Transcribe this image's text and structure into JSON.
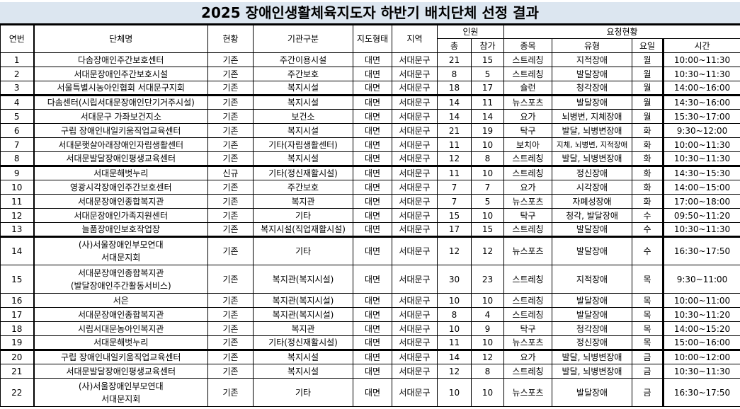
{
  "title": "2025 장애인생활체육지도자 하반기 배치단체 선정 결과",
  "headers": {
    "no": "연번",
    "org": "단체명",
    "status": "현황",
    "category": "기관구분",
    "mode": "지도형태",
    "region": "지역",
    "people": "인원",
    "total": "총",
    "participants": "참가",
    "request": "요청현황",
    "sport": "종목",
    "type": "유형",
    "day": "요일",
    "time": "시간"
  },
  "rows": [
    {
      "no": "1",
      "org": "다솜장애인주간보호센터",
      "status": "기존",
      "category": "주간이용시설",
      "mode": "대면",
      "region": "서대문구",
      "total": "21",
      "participants": "15",
      "sport": "스트레칭",
      "type": "지적장애",
      "day": "월",
      "time": "10:00~11:30"
    },
    {
      "no": "2",
      "org": "서대문장애인주간보호시설",
      "status": "기존",
      "category": "주간보호",
      "mode": "대면",
      "region": "서대문구",
      "total": "8",
      "participants": "5",
      "sport": "스트레칭",
      "type": "발달장애",
      "day": "월",
      "time": "10:30~11:30"
    },
    {
      "no": "3",
      "org": "서울특별시농아인협회 서대문구지회",
      "status": "기존",
      "category": "복지시설",
      "mode": "대면",
      "region": "서대문구",
      "total": "18",
      "participants": "17",
      "sport": "슐런",
      "type": "청각장애",
      "day": "월",
      "time": "14:00~16:00",
      "sep": true
    },
    {
      "no": "4",
      "org": "다솜센터(시립서대문장애인단기거주시설)",
      "status": "기존",
      "category": "복지시설",
      "mode": "대면",
      "region": "서대문구",
      "total": "14",
      "participants": "11",
      "sport": "뉴스포츠",
      "type": "발달장애",
      "day": "월",
      "time": "14:30~16:00"
    },
    {
      "no": "5",
      "org": "서대문구 가좌보건지소",
      "status": "기존",
      "category": "보건소",
      "mode": "대면",
      "region": "서대문구",
      "total": "14",
      "participants": "14",
      "sport": "요가",
      "type": "뇌병변, 지체장애",
      "day": "월",
      "time": "15:30~17:00"
    },
    {
      "no": "6",
      "org": "구립 장애인내일키움직업교육센터",
      "status": "기존",
      "category": "복지시설",
      "mode": "대면",
      "region": "서대문구",
      "total": "21",
      "participants": "19",
      "sport": "탁구",
      "type": "발달, 뇌병변장애",
      "day": "화",
      "time": "9:30~12:00"
    },
    {
      "no": "7",
      "org": "서대문햇살아래장애인자립생활센터",
      "status": "기존",
      "category": "기타(자립생활센터)",
      "mode": "대면",
      "region": "서대문구",
      "total": "11",
      "participants": "10",
      "sport": "보치아",
      "type": "지체, 뇌병변, 지적장애",
      "day": "화",
      "time": "10:00~11:30"
    },
    {
      "no": "8",
      "org": "서대문발달장애인평생교육센터",
      "status": "기존",
      "category": "복지시설",
      "mode": "대면",
      "region": "서대문구",
      "total": "12",
      "participants": "8",
      "sport": "스트레칭",
      "type": "발달, 뇌병변장애",
      "day": "화",
      "time": "10:30~11:30",
      "sep": true
    },
    {
      "no": "9",
      "org": "서대문해벗누리",
      "status": "신규",
      "category": "기타(정신재활시설)",
      "mode": "대면",
      "region": "서대문구",
      "total": "11",
      "participants": "10",
      "sport": "스트레칭",
      "type": "정신장애",
      "day": "화",
      "time": "14:30~15:30"
    },
    {
      "no": "10",
      "org": "영광시각장애인주간보호센터",
      "status": "기존",
      "category": "주간보호",
      "mode": "대면",
      "region": "서대문구",
      "total": "7",
      "participants": "7",
      "sport": "요가",
      "type": "시각장애",
      "day": "화",
      "time": "14:00~15:00"
    },
    {
      "no": "11",
      "org": "서대문장애인종합복지관",
      "status": "기존",
      "category": "복지관",
      "mode": "대면",
      "region": "서대문구",
      "total": "7",
      "participants": "5",
      "sport": "뉴스포츠",
      "type": "자폐성장애",
      "day": "화",
      "time": "17:00~18:00"
    },
    {
      "no": "12",
      "org": "서대문장애인가족지원센터",
      "status": "기존",
      "category": "기타",
      "mode": "대면",
      "region": "서대문구",
      "total": "15",
      "participants": "10",
      "sport": "탁구",
      "type": "청각, 발달장애",
      "day": "수",
      "time": "09:50~11:20"
    },
    {
      "no": "13",
      "org": "늘품장애인보호작업장",
      "status": "기존",
      "category": "복지시설(직업재활시설)",
      "mode": "대면",
      "region": "서대문구",
      "total": "17",
      "participants": "15",
      "sport": "스트레칭",
      "type": "발달장애",
      "day": "수",
      "time": "10:30~11:30",
      "sep": true
    },
    {
      "no": "14",
      "org": "(사)서울장애인부모연대\n서대문지회",
      "status": "기존",
      "category": "기타",
      "mode": "대면",
      "region": "서대문구",
      "total": "12",
      "participants": "12",
      "sport": "뉴스포츠",
      "type": "발달장애",
      "day": "수",
      "time": "16:30~17:50",
      "tall": true
    },
    {
      "no": "15",
      "org": "서대문장애인종합복지관\n(발달장애인주간활동서비스)",
      "status": "기존",
      "category": "복지관(복지시설)",
      "mode": "대면",
      "region": "서대문구",
      "total": "30",
      "participants": "23",
      "sport": "스트레칭",
      "type": "지적장애",
      "day": "목",
      "time": "9:30~11:00",
      "tall": true
    },
    {
      "no": "16",
      "org": "서은",
      "status": "기존",
      "category": "복지관(복지시설)",
      "mode": "대면",
      "region": "서대문구",
      "total": "10",
      "participants": "10",
      "sport": "스트레칭",
      "type": "발달장애",
      "day": "목",
      "time": "10:00~11:00"
    },
    {
      "no": "17",
      "org": "서대문장애인종합복지관",
      "status": "기존",
      "category": "복지관(복지시설)",
      "mode": "대면",
      "region": "서대문구",
      "total": "8",
      "participants": "4",
      "sport": "스트레칭",
      "type": "발달장애",
      "day": "목",
      "time": "10:30~11:20"
    },
    {
      "no": "18",
      "org": "시립서대문농아인복지관",
      "status": "기존",
      "category": "복지관",
      "mode": "대면",
      "region": "서대문구",
      "total": "10",
      "participants": "9",
      "sport": "탁구",
      "type": "청각장애",
      "day": "목",
      "time": "14:00~15:20"
    },
    {
      "no": "19",
      "org": "서대문해벗누리",
      "status": "기존",
      "category": "기타(정신재활시설)",
      "mode": "대면",
      "region": "서대문구",
      "total": "11",
      "participants": "10",
      "sport": "뉴스포츠",
      "type": "정신장애",
      "day": "목",
      "time": "15:00~16:00",
      "sep": true
    },
    {
      "no": "20",
      "org": "구립 장애인내일키움직업교육센터",
      "status": "기존",
      "category": "복지시설",
      "mode": "대면",
      "region": "서대문구",
      "total": "14",
      "participants": "12",
      "sport": "요가",
      "type": "발달, 뇌병변장애",
      "day": "금",
      "time": "10:00~12:00"
    },
    {
      "no": "21",
      "org": "서대문발달장애인평생교육센터",
      "status": "기존",
      "category": "복지시설",
      "mode": "대면",
      "region": "서대문구",
      "total": "12",
      "participants": "8",
      "sport": "스트레칭",
      "type": "발달, 뇌병변장애",
      "day": "금",
      "time": "10:30~11:30"
    },
    {
      "no": "22",
      "org": "(사)서울장애인부모연대\n서대문지회",
      "status": "기존",
      "category": "기타",
      "mode": "대면",
      "region": "서대문구",
      "total": "10",
      "participants": "10",
      "sport": "뉴스포츠",
      "type": "발달장애",
      "day": "금",
      "time": "16:30~17:50",
      "tall": true
    }
  ]
}
